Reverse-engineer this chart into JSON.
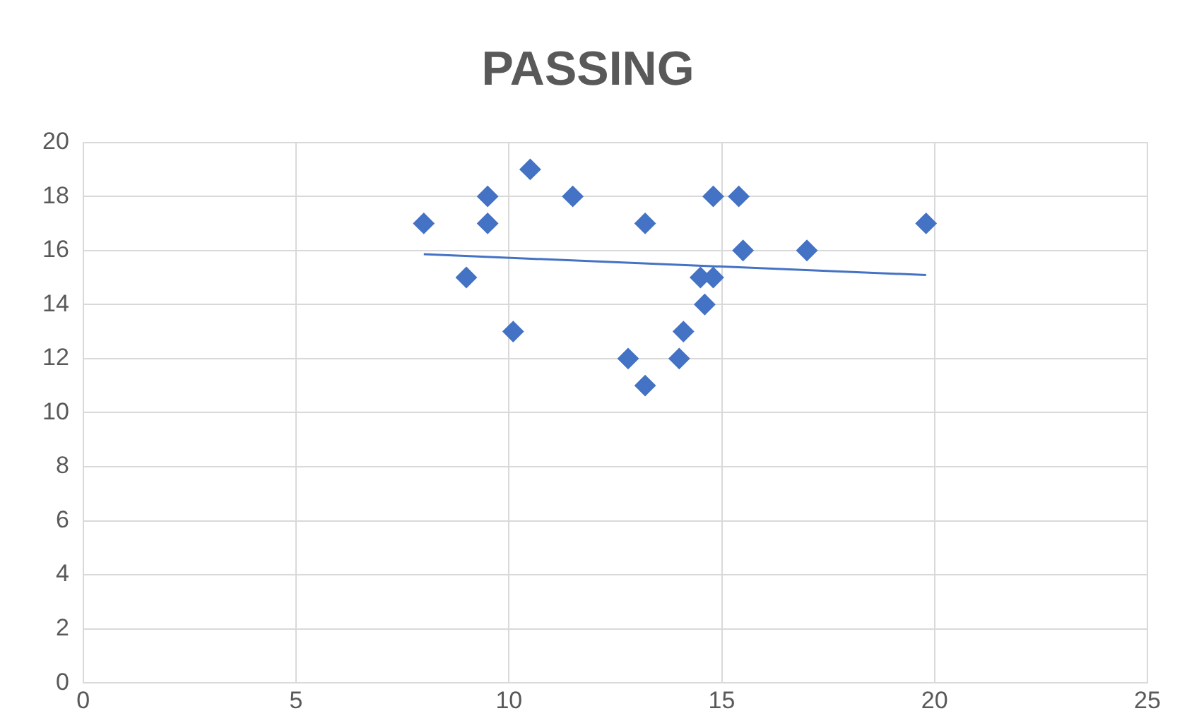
{
  "chart_data": {
    "type": "scatter",
    "title": "PASSING",
    "series": [
      {
        "type": "scatter",
        "color": "#4472c4",
        "x": [
          8.0,
          9.0,
          9.5,
          9.5,
          10.1,
          10.5,
          11.5,
          12.8,
          13.2,
          13.2,
          14.0,
          14.1,
          14.5,
          14.6,
          14.8,
          14.8,
          15.4,
          15.5,
          17.0,
          19.8
        ],
        "values": [
          17,
          15,
          18,
          17,
          13,
          19,
          18,
          12,
          17,
          11,
          12,
          13,
          15,
          14,
          18,
          15,
          18,
          16,
          16,
          17
        ]
      },
      {
        "type": "line",
        "color": "#4472c4",
        "marker": "none",
        "x": [
          8.0,
          19.8
        ],
        "values": [
          15.86,
          15.09
        ]
      }
    ],
    "xlim": [
      0,
      25
    ],
    "xticks": [
      0,
      5,
      10,
      15,
      20,
      25
    ],
    "ylim": [
      0,
      20
    ],
    "yticks": [
      0,
      2,
      4,
      6,
      8,
      10,
      12,
      14,
      16,
      18,
      20
    ],
    "grid": true,
    "legend": false,
    "marker": "diamond"
  }
}
